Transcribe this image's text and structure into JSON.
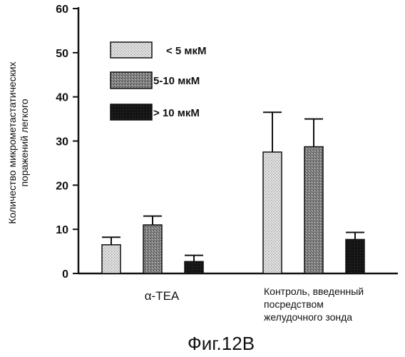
{
  "chart_data": {
    "type": "bar",
    "categories": [
      "α-TEA",
      "Контроль, введенный посредством желудочного зонда"
    ],
    "category_lines": [
      [
        "α-TEA"
      ],
      [
        "Контроль, введенный",
        "посредством",
        "желудочного зонда"
      ]
    ],
    "series": [
      {
        "name": "< 5 мкМ",
        "values": [
          6.5,
          27.5
        ],
        "errors": [
          1.7,
          9.0
        ],
        "color": "#d6d6d6"
      },
      {
        "name": "5-10 мкМ",
        "values": [
          11.0,
          28.7
        ],
        "errors": [
          2.0,
          6.3
        ],
        "color": "#7a7a7a"
      },
      {
        "name": "> 10 мкМ",
        "values": [
          2.7,
          7.7
        ],
        "errors": [
          1.4,
          1.6
        ],
        "color": "#111111"
      }
    ],
    "ylabel": [
      "Количество микрометастатических",
      "поражений легкого"
    ],
    "ylim": [
      0,
      60
    ],
    "yticks": [
      0,
      10,
      20,
      30,
      40,
      50,
      60
    ],
    "legend_position": "top-left",
    "grid": false
  },
  "caption": "Фиг.12B"
}
